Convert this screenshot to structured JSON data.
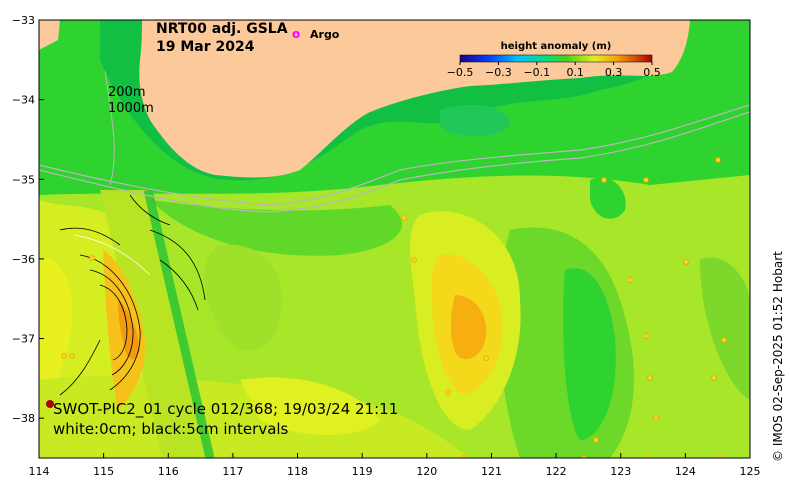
{
  "map": {
    "title_line1": "NRT00 adj. GSLA",
    "title_line2": "19 Mar 2024",
    "legend_marker": "o",
    "legend_label": "Argo",
    "colorbar": {
      "title": "height anomaly (m)",
      "ticks": [
        "−0.5",
        "−0.3",
        "−0.1",
        "0.1",
        "0.3",
        "0.5"
      ],
      "range": [
        -0.5,
        0.5
      ]
    },
    "depth_labels": [
      "200m",
      "1000m"
    ],
    "swot_line1": "SWOT-PIC2_01 cycle 012/368; 19/03/24 21:11",
    "swot_line2": "white:0cm; black:5cm intervals",
    "credit": "© IMOS 02-Sep-2025 01:52 Hobart",
    "x_ticks": [
      "114",
      "115",
      "116",
      "117",
      "118",
      "119",
      "120",
      "121",
      "122",
      "123",
      "124",
      "125"
    ],
    "y_ticks": [
      "−33",
      "−34",
      "−35",
      "−36",
      "−37",
      "−38"
    ],
    "lon_range": [
      114,
      125
    ],
    "lat_range": [
      -38.5,
      -33
    ],
    "colors": {
      "land": "#fbc99a",
      "base": "#2fd32f",
      "argo": "#ff00ff"
    }
  }
}
